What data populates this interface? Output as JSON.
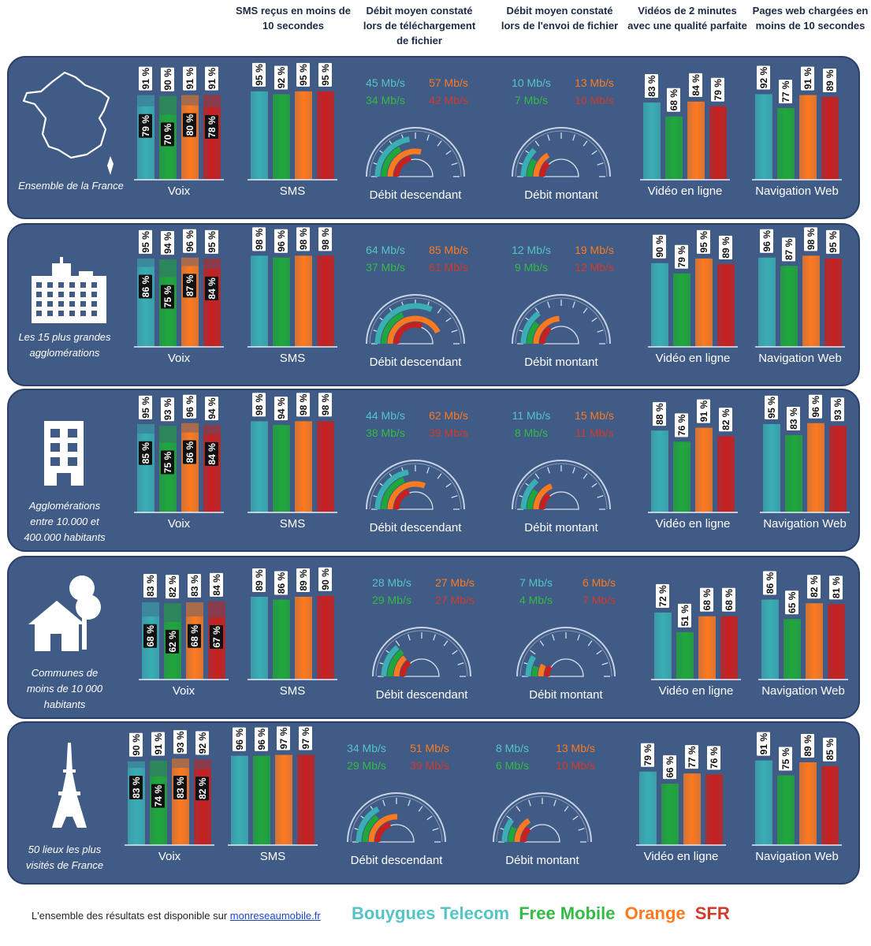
{
  "colors": {
    "bouygues": "#3aaeb3",
    "free": "#1fa83a",
    "orange": "#ff7a1f",
    "sfr": "#c8201e",
    "bouygues_text": "#55c4c6",
    "free_text": "#33bb44",
    "orange_text": "#ff7a1f",
    "sfr_text": "#d23a2a",
    "panel": "#3f5b86",
    "panel_border": "#2a4068"
  },
  "headers": {
    "sms": "SMS reçus en moins de 10 secondes",
    "download": "Débit moyen constaté lors de téléchargement de fichier",
    "upload": "Débit moyen constaté lors de l'envoi de fichier",
    "video": "Vidéos de 2 minutes avec une qualité parfaite",
    "web": "Pages web chargées en moins de 10 secondes"
  },
  "footer": {
    "text": "L'ensemble des résultats est disponible sur ",
    "link": "monreseaumobile.fr"
  },
  "legend": {
    "bouygues": "Bouygues Telecom",
    "free": "Free Mobile",
    "orange": "Orange",
    "sfr": "SFR"
  },
  "icons": [
    "france-map-icon",
    "city-skyline-icon",
    "building-icon",
    "house-tree-icon",
    "eiffel-tower-icon"
  ],
  "chart_data": [
    {
      "type": "bar",
      "region": "Ensemble de la France",
      "operators": [
        "Bouygues Telecom",
        "Free Mobile",
        "Orange",
        "SFR"
      ],
      "voix": {
        "label": "Voix",
        "total": [
          91,
          90,
          91,
          91
        ],
        "perfect": [
          79,
          70,
          80,
          78
        ]
      },
      "sms": {
        "label": "SMS",
        "values": [
          95,
          92,
          95,
          95
        ]
      },
      "download": {
        "label": "Débit descendant",
        "values": [
          45,
          34,
          57,
          42
        ],
        "value_labels": [
          "45 Mb/s",
          "34 Mb/s",
          "57 Mb/s",
          "42 Mb/s"
        ]
      },
      "upload": {
        "label": "Débit montant",
        "values": [
          10,
          7,
          13,
          10
        ],
        "value_labels": [
          "10 Mb/s",
          "7 Mb/s",
          "13 Mb/s",
          "10 Mb/s"
        ]
      },
      "video": {
        "label": "Vidéo en ligne",
        "values": [
          83,
          68,
          84,
          79
        ]
      },
      "web": {
        "label": "Navigation Web",
        "values": [
          92,
          77,
          91,
          89
        ]
      }
    },
    {
      "type": "bar",
      "region": "Les 15 plus grandes agglomérations",
      "operators": [
        "Bouygues Telecom",
        "Free Mobile",
        "Orange",
        "SFR"
      ],
      "voix": {
        "label": "Voix",
        "total": [
          95,
          94,
          96,
          95
        ],
        "perfect": [
          86,
          75,
          87,
          84
        ]
      },
      "sms": {
        "label": "SMS",
        "values": [
          98,
          96,
          98,
          98
        ]
      },
      "download": {
        "label": "Débit descendant",
        "values": [
          64,
          37,
          85,
          61
        ],
        "value_labels": [
          "64 Mb/s",
          "37 Mb/s",
          "85 Mb/s",
          "61 Mb/s"
        ]
      },
      "upload": {
        "label": "Débit montant",
        "values": [
          12,
          9,
          19,
          12
        ],
        "value_labels": [
          "12 Mb/s",
          "9 Mb/s",
          "19 Mb/s",
          "12 Mb/s"
        ]
      },
      "video": {
        "label": "Vidéo en ligne",
        "values": [
          90,
          79,
          95,
          89
        ]
      },
      "web": {
        "label": "Navigation Web",
        "values": [
          96,
          87,
          98,
          95
        ]
      }
    },
    {
      "type": "bar",
      "region": "Agglomérations entre 10.000 et 400.000 habitants",
      "operators": [
        "Bouygues Telecom",
        "Free Mobile",
        "Orange",
        "SFR"
      ],
      "voix": {
        "label": "Voix",
        "total": [
          95,
          93,
          96,
          94
        ],
        "perfect": [
          85,
          75,
          86,
          84
        ]
      },
      "sms": {
        "label": "SMS",
        "values": [
          98,
          94,
          98,
          98
        ]
      },
      "download": {
        "label": "Débit descendant",
        "values": [
          44,
          38,
          62,
          39
        ],
        "value_labels": [
          "44 Mb/s",
          "38 Mb/s",
          "62 Mb/s",
          "39 Mb/s"
        ]
      },
      "upload": {
        "label": "Débit montant",
        "values": [
          11,
          8,
          15,
          11
        ],
        "value_labels": [
          "11 Mb/s",
          "8 Mb/s",
          "15 Mb/s",
          "11 Mb/s"
        ]
      },
      "video": {
        "label": "Vidéo en ligne",
        "values": [
          88,
          76,
          91,
          82
        ]
      },
      "web": {
        "label": "Navigation Web",
        "values": [
          95,
          83,
          96,
          93
        ]
      }
    },
    {
      "type": "bar",
      "region": "Communes de moins de 10 000 habitants",
      "operators": [
        "Bouygues Telecom",
        "Free Mobile",
        "Orange",
        "SFR"
      ],
      "voix": {
        "label": "Voix",
        "total": [
          83,
          82,
          83,
          84
        ],
        "perfect": [
          68,
          62,
          68,
          67
        ]
      },
      "sms": {
        "label": "SMS",
        "values": [
          89,
          86,
          89,
          90
        ]
      },
      "download": {
        "label": "Débit descendant",
        "values": [
          28,
          29,
          27,
          27
        ],
        "value_labels": [
          "28 Mb/s",
          "29 Mb/s",
          "27 Mb/s",
          "27 Mb/s"
        ]
      },
      "upload": {
        "label": "Débit montant",
        "values": [
          7,
          4,
          6,
          7
        ],
        "value_labels": [
          "7 Mb/s",
          "4 Mb/s",
          "6 Mb/s",
          "7 Mb/s"
        ]
      },
      "video": {
        "label": "Vidéo en ligne",
        "values": [
          72,
          51,
          68,
          68
        ]
      },
      "web": {
        "label": "Navigation Web",
        "values": [
          86,
          65,
          82,
          81
        ]
      }
    },
    {
      "type": "bar",
      "region": "50 lieux les plus visités de France",
      "operators": [
        "Bouygues Telecom",
        "Free Mobile",
        "Orange",
        "SFR"
      ],
      "voix": {
        "label": "Voix",
        "total": [
          90,
          91,
          93,
          92
        ],
        "perfect": [
          83,
          74,
          83,
          82
        ]
      },
      "sms": {
        "label": "SMS",
        "values": [
          96,
          96,
          97,
          97
        ]
      },
      "download": {
        "label": "Débit descendant",
        "values": [
          34,
          29,
          51,
          39
        ],
        "value_labels": [
          "34 Mb/s",
          "29 Mb/s",
          "51 Mb/s",
          "39 Mb/s"
        ]
      },
      "upload": {
        "label": "Débit montant",
        "values": [
          8,
          6,
          13,
          10
        ],
        "value_labels": [
          "8 Mb/s",
          "6 Mb/s",
          "13 Mb/s",
          "10 Mb/s"
        ]
      },
      "video": {
        "label": "Vidéo en ligne",
        "values": [
          79,
          66,
          77,
          76
        ]
      },
      "web": {
        "label": "Navigation Web",
        "values": [
          91,
          75,
          89,
          85
        ]
      }
    }
  ]
}
